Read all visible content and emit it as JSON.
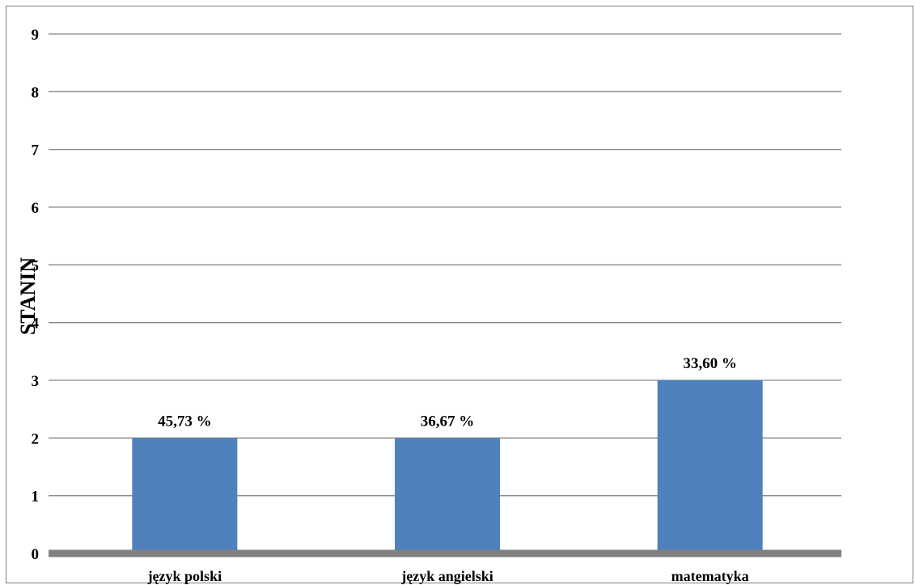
{
  "chart_data": {
    "type": "bar",
    "categories": [
      "język polski",
      "język angielski",
      "matematyka"
    ],
    "values": [
      2,
      2,
      3
    ],
    "data_labels": [
      "45,73 %",
      "36,67 %",
      "33,60 %"
    ],
    "ylabel": "STANIN",
    "ylim": [
      0,
      9
    ],
    "yticks": [
      "0",
      "1",
      "2",
      "3",
      "4",
      "5",
      "6",
      "7",
      "8",
      "9"
    ],
    "grid": true,
    "legend": "none",
    "bar_color": "#4f81bd",
    "grid_color": "#868686",
    "axis_color": "#808080"
  }
}
